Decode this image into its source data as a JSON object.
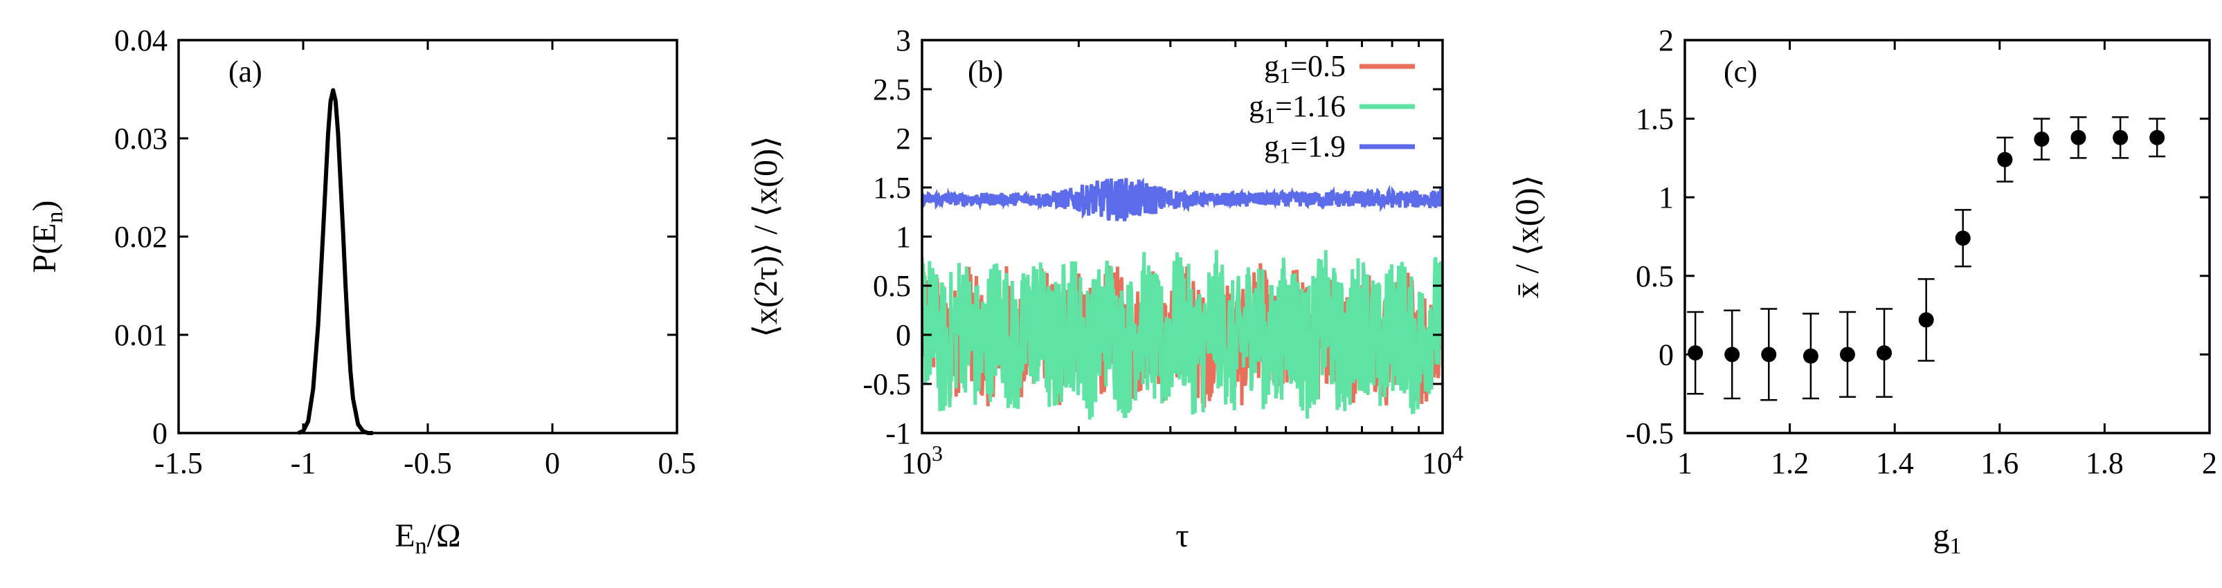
{
  "chart_data": [
    {
      "id": "a",
      "type": "line",
      "panel_label": "(a)",
      "xlabel": "E_n/Ω",
      "ylabel": "P(E_n)",
      "xlim": [
        -1.5,
        0.5
      ],
      "ylim": [
        0,
        0.04
      ],
      "xticks": [
        "-1.5",
        "-1",
        "-0.5",
        "0",
        "0.5"
      ],
      "yticks": [
        "0",
        "0.01",
        "0.02",
        "0.03",
        "0.04"
      ],
      "series": [
        {
          "color": "#000000",
          "x": [
            -1.02,
            -1.0,
            -0.98,
            -0.96,
            -0.94,
            -0.92,
            -0.91,
            -0.9,
            -0.89,
            -0.88,
            -0.87,
            -0.86,
            -0.85,
            -0.84,
            -0.83,
            -0.82,
            -0.81,
            -0.8,
            -0.78,
            -0.76,
            -0.74,
            -0.72
          ],
          "y": [
            0.0,
            0.0002,
            0.0012,
            0.0045,
            0.011,
            0.0205,
            0.0255,
            0.0305,
            0.0338,
            0.0349,
            0.0338,
            0.0305,
            0.0255,
            0.0205,
            0.015,
            0.0102,
            0.0062,
            0.0035,
            0.0009,
            0.0002,
            0.0,
            0.0
          ]
        }
      ]
    },
    {
      "id": "b",
      "type": "line",
      "panel_label": "(b)",
      "xlabel": "τ",
      "ylabel": "⟨x(2τ)⟩ / ⟨x(0)⟩",
      "xscale": "log",
      "xlim": [
        1000,
        10000
      ],
      "ylim": [
        -1,
        3
      ],
      "xticks": [
        "10^3",
        "10^4"
      ],
      "yticks": [
        "-1",
        "-0.5",
        "0",
        "0.5",
        "1",
        "1.5",
        "2",
        "2.5",
        "3"
      ],
      "legend_position": "top-right",
      "series": [
        {
          "name": "g1=0.5",
          "color": "#e8705a",
          "mean": 0.0,
          "amplitude": 0.6
        },
        {
          "name": "g1=1.16",
          "color": "#5fe3a4",
          "mean": 0.0,
          "amplitude": 0.72
        },
        {
          "name": "g1=1.9",
          "color": "#5c6bea",
          "mean": 1.38,
          "amplitude": 0.18
        }
      ]
    },
    {
      "id": "c",
      "type": "scatter",
      "panel_label": "(c)",
      "xlabel": "g1",
      "ylabel": "x̄ / ⟨x(0)⟩",
      "xlim": [
        1,
        2
      ],
      "ylim": [
        -0.5,
        2
      ],
      "xticks": [
        "1",
        "1.2",
        "1.4",
        "1.6",
        "1.8",
        "2"
      ],
      "yticks": [
        "-0.5",
        "0",
        "0.5",
        "1",
        "1.5",
        "2"
      ],
      "errorbars": true,
      "x": [
        1.02,
        1.09,
        1.16,
        1.24,
        1.31,
        1.38,
        1.46,
        1.53,
        1.61,
        1.68,
        1.75,
        1.83,
        1.9
      ],
      "y": [
        0.01,
        0.0,
        0.0,
        -0.01,
        0.0,
        0.01,
        0.22,
        0.74,
        1.24,
        1.37,
        1.38,
        1.38,
        1.38
      ],
      "err": [
        0.26,
        0.28,
        0.29,
        0.27,
        0.27,
        0.28,
        0.26,
        0.18,
        0.14,
        0.13,
        0.13,
        0.13,
        0.12
      ]
    }
  ]
}
